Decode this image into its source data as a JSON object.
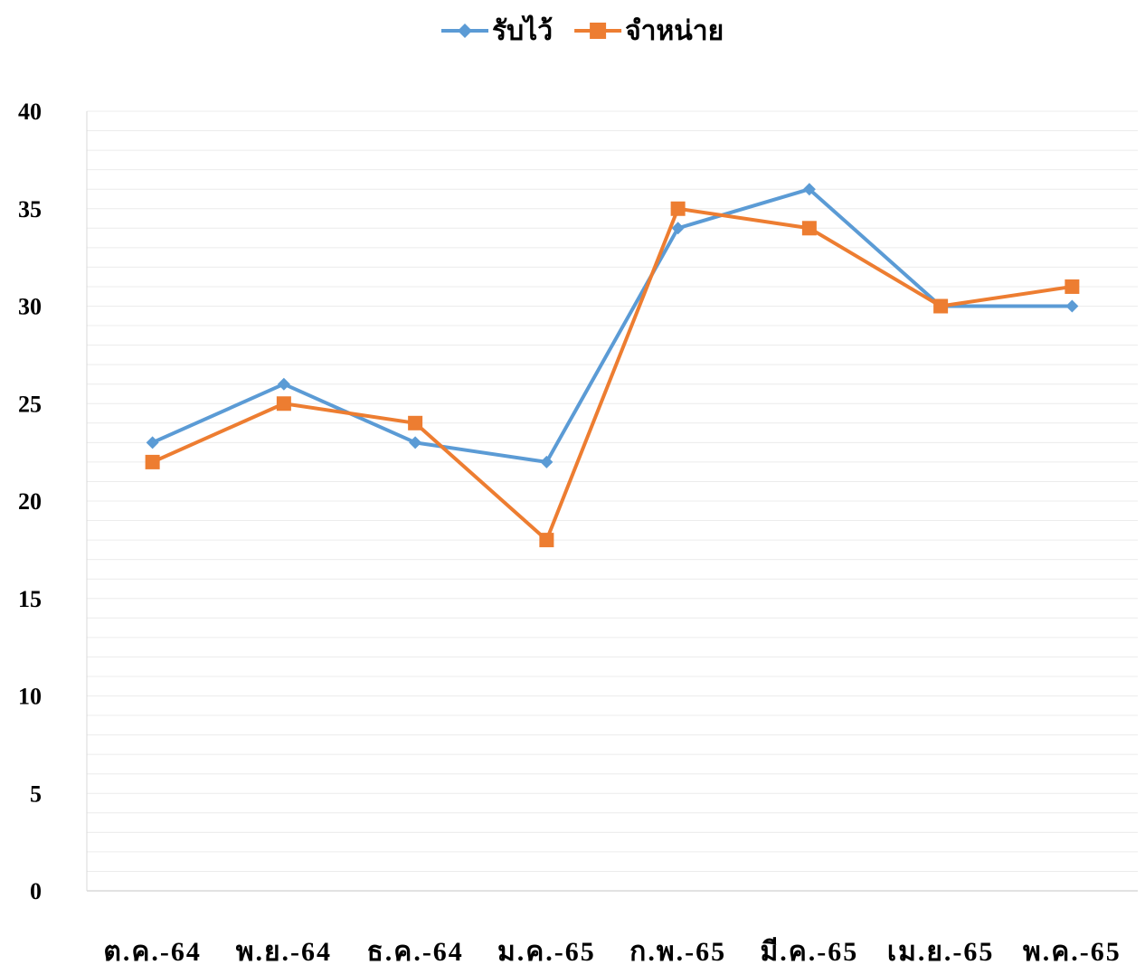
{
  "chart_data": {
    "type": "line",
    "categories": [
      "ต.ค.-64",
      "พ.ย.-64",
      "ธ.ค.-64",
      "ม.ค.-65",
      "ก.พ.-65",
      "มี.ค.-65",
      "เม.ย.-65",
      "พ.ค.-65"
    ],
    "series": [
      {
        "name": "รับไว้",
        "color": "#5b9bd5",
        "marker": "diamond",
        "values": [
          23,
          26,
          23,
          22,
          34,
          36,
          30,
          30
        ]
      },
      {
        "name": "จำหน่าย",
        "color": "#ed7d31",
        "marker": "square",
        "values": [
          22,
          25,
          24,
          18,
          35,
          34,
          30,
          31
        ]
      }
    ],
    "title": "",
    "xlabel": "",
    "ylabel": "",
    "ylim": [
      0,
      40
    ],
    "yticks": [
      0,
      5,
      10,
      15,
      20,
      25,
      30,
      35,
      40
    ],
    "grid": "horizontal major and minor",
    "legend": "top-center"
  }
}
